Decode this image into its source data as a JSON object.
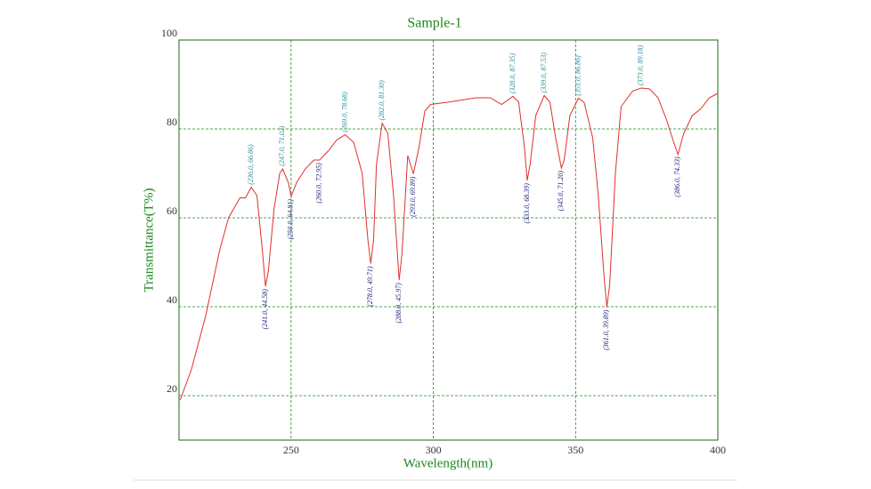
{
  "chart_data": {
    "type": "line",
    "title": "Sample-1",
    "x_label": "Wavelength(nm)",
    "y_label": "Transmittance(T%)",
    "xlim": [
      210.6,
      400
    ],
    "ylim": [
      10,
      100
    ],
    "xticks": [
      250,
      300,
      350,
      400
    ],
    "yticks": [
      20,
      40,
      60,
      80,
      100
    ],
    "grid": true,
    "series": [
      {
        "color": "#e0302a",
        "x": [
          211,
          215,
          220,
          225,
          228,
          232,
          234,
          236,
          238,
          240,
          241,
          242,
          244,
          246,
          247,
          249,
          250,
          252,
          255,
          258,
          260,
          263,
          266,
          269,
          272,
          275,
          277,
          278,
          279,
          280,
          282,
          284,
          286,
          288,
          289,
          291,
          292,
          293,
          295,
          297,
          299,
          305,
          315,
          320,
          324,
          328,
          330,
          332,
          333,
          334,
          336,
          339,
          341,
          343,
          345,
          346,
          348,
          351,
          353,
          356,
          358,
          360,
          361,
          362,
          364,
          366,
          370,
          373,
          376,
          379,
          382,
          385,
          386,
          388,
          391,
          394,
          397,
          400
        ],
        "y": [
          19,
          26,
          38,
          53,
          60,
          64.5,
          64.5,
          66.9,
          65,
          52,
          44.6,
          48,
          62,
          70,
          71,
          68,
          64.8,
          68,
          71,
          73,
          73,
          75,
          77.5,
          78.7,
          77,
          70,
          55,
          49.7,
          55,
          72,
          81.3,
          79,
          65,
          46,
          52,
          74,
          72,
          69.9,
          76,
          84,
          85.5,
          86,
          87,
          87,
          85.5,
          87.35,
          86,
          76,
          68.4,
          72,
          83,
          87.5,
          86,
          78,
          71.2,
          73,
          83,
          86.9,
          86,
          78,
          65,
          47,
          39.9,
          45,
          70,
          85,
          88.5,
          89.2,
          89,
          87,
          82,
          76,
          74.3,
          79,
          83,
          84.5,
          87,
          88
        ]
      }
    ],
    "peak_labels": [
      {
        "label": "(236.0, 66.86)",
        "x": 236,
        "y": 66.86
      },
      {
        "label": "(247.0, 71.02)",
        "x": 247,
        "y": 71.02
      },
      {
        "label": "(269.0, 78.68)",
        "x": 269,
        "y": 78.68
      },
      {
        "label": "(282.0, 81.30)",
        "x": 282,
        "y": 81.3
      },
      {
        "label": "(328.0, 87.35)",
        "x": 328,
        "y": 87.35
      },
      {
        "label": "(339.0, 87.53)",
        "x": 339,
        "y": 87.53
      },
      {
        "label": "(351.0, 86.86)",
        "x": 351,
        "y": 86.86
      },
      {
        "label": "(373.0, 89.18)",
        "x": 373,
        "y": 89.18
      }
    ],
    "valley_labels": [
      {
        "label": "(241.0, 44.58)",
        "x": 241,
        "y": 44.58
      },
      {
        "label": "(250.0, 64.81)",
        "x": 250,
        "y": 64.81
      },
      {
        "label": "(260.0, 72.95)",
        "x": 260,
        "y": 72.95
      },
      {
        "label": "(278.0, 49.71)",
        "x": 278,
        "y": 49.71
      },
      {
        "label": "(288.0, 45.97)",
        "x": 288,
        "y": 45.97
      },
      {
        "label": "(293.0, 69.89)",
        "x": 293,
        "y": 69.89
      },
      {
        "label": "(333.0, 68.39)",
        "x": 333,
        "y": 68.39
      },
      {
        "label": "(345.0, 71.20)",
        "x": 345,
        "y": 71.2
      },
      {
        "label": "(361.0, 39.89)",
        "x": 361,
        "y": 39.89
      },
      {
        "label": "(386.0, 74.33)",
        "x": 386,
        "y": 74.33
      }
    ]
  }
}
